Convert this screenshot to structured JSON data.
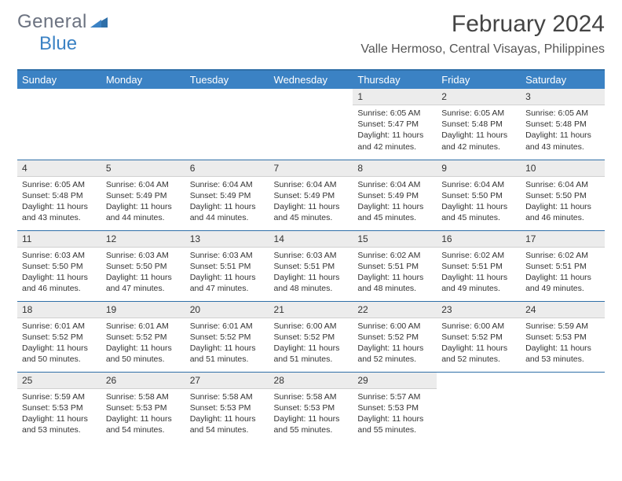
{
  "logo": {
    "general": "General",
    "blue": "Blue"
  },
  "title": "February 2024",
  "subtitle": "Valle Hermoso, Central Visayas, Philippines",
  "colors": {
    "header_bg": "#3b82c4",
    "header_text": "#ffffff",
    "rule": "#2f6fa8",
    "daynum_bg": "#ececec",
    "body_text": "#333333",
    "logo_gray": "#6b7280",
    "logo_blue": "#3b82c4",
    "page_bg": "#ffffff"
  },
  "typography": {
    "title_size_pt": 22,
    "subtitle_size_pt": 12,
    "dayhead_size_pt": 10,
    "cell_size_pt": 8
  },
  "layout": {
    "columns": 7,
    "rows": 5,
    "first_weekday": "Sunday"
  },
  "weekdays": [
    "Sunday",
    "Monday",
    "Tuesday",
    "Wednesday",
    "Thursday",
    "Friday",
    "Saturday"
  ],
  "weeks": [
    [
      {
        "num": "",
        "sunrise": "",
        "sunset": "",
        "daylight": ""
      },
      {
        "num": "",
        "sunrise": "",
        "sunset": "",
        "daylight": ""
      },
      {
        "num": "",
        "sunrise": "",
        "sunset": "",
        "daylight": ""
      },
      {
        "num": "",
        "sunrise": "",
        "sunset": "",
        "daylight": ""
      },
      {
        "num": "1",
        "sunrise": "Sunrise: 6:05 AM",
        "sunset": "Sunset: 5:47 PM",
        "daylight": "Daylight: 11 hours and 42 minutes."
      },
      {
        "num": "2",
        "sunrise": "Sunrise: 6:05 AM",
        "sunset": "Sunset: 5:48 PM",
        "daylight": "Daylight: 11 hours and 42 minutes."
      },
      {
        "num": "3",
        "sunrise": "Sunrise: 6:05 AM",
        "sunset": "Sunset: 5:48 PM",
        "daylight": "Daylight: 11 hours and 43 minutes."
      }
    ],
    [
      {
        "num": "4",
        "sunrise": "Sunrise: 6:05 AM",
        "sunset": "Sunset: 5:48 PM",
        "daylight": "Daylight: 11 hours and 43 minutes."
      },
      {
        "num": "5",
        "sunrise": "Sunrise: 6:04 AM",
        "sunset": "Sunset: 5:49 PM",
        "daylight": "Daylight: 11 hours and 44 minutes."
      },
      {
        "num": "6",
        "sunrise": "Sunrise: 6:04 AM",
        "sunset": "Sunset: 5:49 PM",
        "daylight": "Daylight: 11 hours and 44 minutes."
      },
      {
        "num": "7",
        "sunrise": "Sunrise: 6:04 AM",
        "sunset": "Sunset: 5:49 PM",
        "daylight": "Daylight: 11 hours and 45 minutes."
      },
      {
        "num": "8",
        "sunrise": "Sunrise: 6:04 AM",
        "sunset": "Sunset: 5:49 PM",
        "daylight": "Daylight: 11 hours and 45 minutes."
      },
      {
        "num": "9",
        "sunrise": "Sunrise: 6:04 AM",
        "sunset": "Sunset: 5:50 PM",
        "daylight": "Daylight: 11 hours and 45 minutes."
      },
      {
        "num": "10",
        "sunrise": "Sunrise: 6:04 AM",
        "sunset": "Sunset: 5:50 PM",
        "daylight": "Daylight: 11 hours and 46 minutes."
      }
    ],
    [
      {
        "num": "11",
        "sunrise": "Sunrise: 6:03 AM",
        "sunset": "Sunset: 5:50 PM",
        "daylight": "Daylight: 11 hours and 46 minutes."
      },
      {
        "num": "12",
        "sunrise": "Sunrise: 6:03 AM",
        "sunset": "Sunset: 5:50 PM",
        "daylight": "Daylight: 11 hours and 47 minutes."
      },
      {
        "num": "13",
        "sunrise": "Sunrise: 6:03 AM",
        "sunset": "Sunset: 5:51 PM",
        "daylight": "Daylight: 11 hours and 47 minutes."
      },
      {
        "num": "14",
        "sunrise": "Sunrise: 6:03 AM",
        "sunset": "Sunset: 5:51 PM",
        "daylight": "Daylight: 11 hours and 48 minutes."
      },
      {
        "num": "15",
        "sunrise": "Sunrise: 6:02 AM",
        "sunset": "Sunset: 5:51 PM",
        "daylight": "Daylight: 11 hours and 48 minutes."
      },
      {
        "num": "16",
        "sunrise": "Sunrise: 6:02 AM",
        "sunset": "Sunset: 5:51 PM",
        "daylight": "Daylight: 11 hours and 49 minutes."
      },
      {
        "num": "17",
        "sunrise": "Sunrise: 6:02 AM",
        "sunset": "Sunset: 5:51 PM",
        "daylight": "Daylight: 11 hours and 49 minutes."
      }
    ],
    [
      {
        "num": "18",
        "sunrise": "Sunrise: 6:01 AM",
        "sunset": "Sunset: 5:52 PM",
        "daylight": "Daylight: 11 hours and 50 minutes."
      },
      {
        "num": "19",
        "sunrise": "Sunrise: 6:01 AM",
        "sunset": "Sunset: 5:52 PM",
        "daylight": "Daylight: 11 hours and 50 minutes."
      },
      {
        "num": "20",
        "sunrise": "Sunrise: 6:01 AM",
        "sunset": "Sunset: 5:52 PM",
        "daylight": "Daylight: 11 hours and 51 minutes."
      },
      {
        "num": "21",
        "sunrise": "Sunrise: 6:00 AM",
        "sunset": "Sunset: 5:52 PM",
        "daylight": "Daylight: 11 hours and 51 minutes."
      },
      {
        "num": "22",
        "sunrise": "Sunrise: 6:00 AM",
        "sunset": "Sunset: 5:52 PM",
        "daylight": "Daylight: 11 hours and 52 minutes."
      },
      {
        "num": "23",
        "sunrise": "Sunrise: 6:00 AM",
        "sunset": "Sunset: 5:52 PM",
        "daylight": "Daylight: 11 hours and 52 minutes."
      },
      {
        "num": "24",
        "sunrise": "Sunrise: 5:59 AM",
        "sunset": "Sunset: 5:53 PM",
        "daylight": "Daylight: 11 hours and 53 minutes."
      }
    ],
    [
      {
        "num": "25",
        "sunrise": "Sunrise: 5:59 AM",
        "sunset": "Sunset: 5:53 PM",
        "daylight": "Daylight: 11 hours and 53 minutes."
      },
      {
        "num": "26",
        "sunrise": "Sunrise: 5:58 AM",
        "sunset": "Sunset: 5:53 PM",
        "daylight": "Daylight: 11 hours and 54 minutes."
      },
      {
        "num": "27",
        "sunrise": "Sunrise: 5:58 AM",
        "sunset": "Sunset: 5:53 PM",
        "daylight": "Daylight: 11 hours and 54 minutes."
      },
      {
        "num": "28",
        "sunrise": "Sunrise: 5:58 AM",
        "sunset": "Sunset: 5:53 PM",
        "daylight": "Daylight: 11 hours and 55 minutes."
      },
      {
        "num": "29",
        "sunrise": "Sunrise: 5:57 AM",
        "sunset": "Sunset: 5:53 PM",
        "daylight": "Daylight: 11 hours and 55 minutes."
      },
      {
        "num": "",
        "sunrise": "",
        "sunset": "",
        "daylight": ""
      },
      {
        "num": "",
        "sunrise": "",
        "sunset": "",
        "daylight": ""
      }
    ]
  ]
}
